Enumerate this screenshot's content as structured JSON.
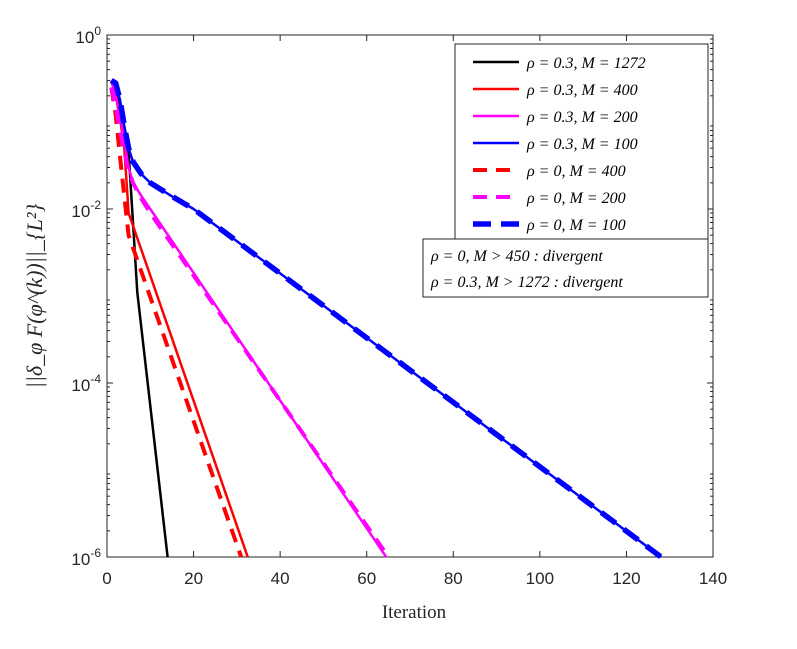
{
  "chart_data": {
    "type": "line",
    "xlabel": "Iteration",
    "ylabel": "||δ_φ F(φ^(k))||_{L²}",
    "xscale": "linear",
    "yscale": "log",
    "xlim": [
      0,
      140
    ],
    "ylim": [
      1e-06,
      1
    ],
    "xticks": [
      "0",
      "20",
      "40",
      "60",
      "80",
      "100",
      "120",
      "140"
    ],
    "yticks": [
      {
        "value": 1,
        "base": "10",
        "exp": "0"
      },
      {
        "value": 0.01,
        "base": "10",
        "exp": "-2"
      },
      {
        "value": 0.0001,
        "base": "10",
        "exp": "-4"
      },
      {
        "value": 1e-06,
        "base": "10",
        "exp": "-6"
      }
    ],
    "legend_position": "top-right",
    "series": [
      {
        "name": "ρ = 0.3, M = 1272",
        "color": "#000000",
        "style": "solid",
        "x": [
          1,
          2,
          3,
          4,
          5,
          6,
          7,
          14
        ],
        "y": [
          0.3,
          0.25,
          0.13,
          0.06,
          0.045,
          0.007,
          0.0011,
          1e-06
        ]
      },
      {
        "name": "ρ = 0.3, M = 400",
        "color": "#ff0000",
        "style": "solid",
        "x": [
          1,
          2,
          3,
          4,
          5,
          32.5
        ],
        "y": [
          0.3,
          0.2,
          0.11,
          0.05,
          0.009,
          1e-06
        ]
      },
      {
        "name": "ρ = 0.3, M = 200",
        "color": "#ff00ff",
        "style": "solid",
        "x": [
          1,
          2,
          3,
          4,
          5,
          6,
          8,
          10,
          64.5
        ],
        "y": [
          0.3,
          0.2,
          0.12,
          0.06,
          0.03,
          0.02,
          0.014,
          0.01,
          1e-06
        ]
      },
      {
        "name": "ρ = 0.3, M = 100",
        "color": "#0000ff",
        "style": "solid",
        "x": [
          1,
          2,
          3,
          4,
          5,
          6,
          8,
          10,
          15,
          20,
          128
        ],
        "y": [
          0.3,
          0.28,
          0.18,
          0.09,
          0.05,
          0.035,
          0.025,
          0.02,
          0.014,
          0.01,
          1e-06
        ]
      },
      {
        "name": "ρ = 0, M = 400",
        "color": "#ff0000",
        "style": "dashed",
        "x": [
          1,
          2,
          3,
          4,
          5,
          31
        ],
        "y": [
          0.25,
          0.12,
          0.04,
          0.014,
          0.005,
          1e-06
        ]
      },
      {
        "name": "ρ = 0, M = 200",
        "color": "#ff00ff",
        "style": "dashed",
        "x": [
          1,
          2,
          3,
          4,
          5,
          6,
          8,
          10,
          65
        ],
        "y": [
          0.25,
          0.15,
          0.08,
          0.045,
          0.028,
          0.02,
          0.013,
          0.009,
          1e-06
        ]
      },
      {
        "name": "ρ = 0, M = 100",
        "color": "#0000ff",
        "style": "dashed-thick",
        "x": [
          1,
          2,
          3,
          4,
          5,
          6,
          8,
          10,
          15,
          20,
          128
        ],
        "y": [
          0.3,
          0.28,
          0.18,
          0.09,
          0.05,
          0.035,
          0.025,
          0.02,
          0.014,
          0.01,
          1e-06
        ]
      }
    ],
    "notes": [
      "ρ = 0, M > 450 : divergent",
      "ρ = 0.3, M > 1272 : divergent"
    ]
  }
}
